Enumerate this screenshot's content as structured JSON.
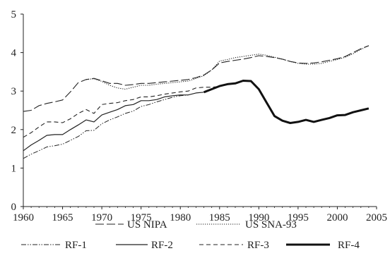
{
  "chart_data": {
    "type": "line",
    "title": "",
    "xlabel": "",
    "ylabel": "",
    "xlim": [
      1960,
      2005
    ],
    "ylim": [
      0,
      5
    ],
    "xticks": [
      1960,
      1965,
      1970,
      1975,
      1980,
      1985,
      1990,
      1995,
      2000,
      2005
    ],
    "yticks": [
      0,
      1,
      2,
      3,
      4,
      5
    ],
    "grid": false,
    "legend_position": "bottom",
    "series": [
      {
        "name": "US NIPA",
        "style": "long-dash",
        "color": "#222222",
        "x": [
          1960,
          1961,
          1962,
          1963,
          1964,
          1965,
          1966,
          1967,
          1968,
          1969,
          1970,
          1971,
          1972,
          1973,
          1974,
          1975,
          1976,
          1977,
          1978,
          1979,
          1980,
          1981,
          1982,
          1983,
          1984,
          1985,
          1986,
          1987,
          1988,
          1989,
          1990,
          1991,
          1992,
          1993,
          1994,
          1995,
          1996,
          1997,
          1998,
          1999,
          2000,
          2001,
          2002,
          2003,
          2004
        ],
        "y": [
          2.47,
          2.5,
          2.62,
          2.68,
          2.72,
          2.77,
          2.98,
          3.22,
          3.3,
          3.33,
          3.27,
          3.2,
          3.2,
          3.15,
          3.17,
          3.2,
          3.2,
          3.22,
          3.24,
          3.26,
          3.28,
          3.3,
          3.35,
          3.42,
          3.55,
          3.73,
          3.77,
          3.8,
          3.83,
          3.87,
          3.92,
          3.9,
          3.87,
          3.83,
          3.77,
          3.73,
          3.72,
          3.73,
          3.76,
          3.8,
          3.84,
          3.9,
          4.0,
          4.1,
          4.18
        ]
      },
      {
        "name": "US SNA-93",
        "style": "dotted",
        "color": "#222222",
        "x": [
          1968,
          1969,
          1970,
          1971,
          1972,
          1973,
          1974,
          1975,
          1976,
          1977,
          1978,
          1979,
          1980,
          1981,
          1982,
          1983,
          1984,
          1985,
          1986,
          1987,
          1988,
          1989,
          1990,
          1991,
          1992,
          1993,
          1994,
          1995,
          1996,
          1997,
          1998,
          1999,
          2000,
          2001,
          2002,
          2003,
          2004
        ],
        "y": [
          3.3,
          3.32,
          3.25,
          3.15,
          3.08,
          3.05,
          3.1,
          3.15,
          3.15,
          3.18,
          3.2,
          3.22,
          3.24,
          3.26,
          3.33,
          3.4,
          3.55,
          3.78,
          3.82,
          3.87,
          3.9,
          3.93,
          3.96,
          3.93,
          3.88,
          3.83,
          3.77,
          3.72,
          3.7,
          3.7,
          3.72,
          3.77,
          3.82,
          3.88,
          3.97,
          4.08,
          4.18
        ]
      },
      {
        "name": "RF-1",
        "style": "dash-dot-dot",
        "color": "#222222",
        "x": [
          1960,
          1961,
          1962,
          1963,
          1964,
          1965,
          1966,
          1967,
          1968,
          1969,
          1970,
          1971,
          1972,
          1973,
          1974,
          1975,
          1976,
          1977,
          1978,
          1979,
          1980,
          1981
        ],
        "y": [
          1.25,
          1.36,
          1.45,
          1.55,
          1.58,
          1.62,
          1.72,
          1.82,
          1.97,
          1.98,
          2.15,
          2.25,
          2.33,
          2.42,
          2.48,
          2.6,
          2.65,
          2.72,
          2.78,
          2.84,
          2.88,
          2.9
        ]
      },
      {
        "name": "RF-2",
        "style": "solid",
        "color": "#222222",
        "x": [
          1960,
          1961,
          1962,
          1963,
          1964,
          1965,
          1966,
          1967,
          1968,
          1969,
          1970,
          1971,
          1972,
          1973,
          1974,
          1975,
          1976,
          1977,
          1978,
          1979,
          1980,
          1981,
          1982,
          1983
        ],
        "y": [
          1.45,
          1.6,
          1.72,
          1.85,
          1.87,
          1.87,
          2.0,
          2.12,
          2.25,
          2.2,
          2.38,
          2.45,
          2.52,
          2.62,
          2.65,
          2.75,
          2.75,
          2.78,
          2.85,
          2.88,
          2.9,
          2.9,
          2.95,
          2.97
        ]
      },
      {
        "name": "RF-3",
        "style": "short-dash",
        "color": "#222222",
        "x": [
          1960,
          1961,
          1962,
          1963,
          1964,
          1965,
          1966,
          1967,
          1968,
          1969,
          1970,
          1971,
          1972,
          1973,
          1974,
          1975,
          1976,
          1977,
          1978,
          1979,
          1980,
          1981,
          1982,
          1983,
          1984,
          1985
        ],
        "y": [
          1.8,
          1.92,
          2.07,
          2.2,
          2.2,
          2.18,
          2.28,
          2.42,
          2.52,
          2.42,
          2.65,
          2.68,
          2.7,
          2.75,
          2.78,
          2.85,
          2.85,
          2.88,
          2.92,
          2.95,
          2.98,
          3.0,
          3.08,
          3.1,
          3.1,
          3.12
        ]
      },
      {
        "name": "RF-4",
        "style": "thick-solid",
        "color": "#111111",
        "x": [
          1983,
          1984,
          1985,
          1986,
          1987,
          1988,
          1989,
          1990,
          1991,
          1992,
          1993,
          1994,
          1995,
          1996,
          1997,
          1998,
          1999,
          2000,
          2001,
          2002,
          2003,
          2004
        ],
        "y": [
          2.97,
          3.05,
          3.13,
          3.18,
          3.2,
          3.27,
          3.26,
          3.05,
          2.7,
          2.35,
          2.23,
          2.17,
          2.2,
          2.25,
          2.2,
          2.25,
          2.3,
          2.37,
          2.38,
          2.45,
          2.5,
          2.55
        ]
      }
    ]
  }
}
